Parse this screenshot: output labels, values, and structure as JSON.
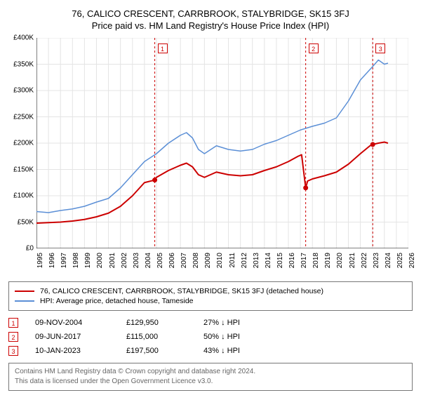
{
  "title_line1": "76, CALICO CRESCENT, CARRBROOK, STALYBRIDGE, SK15 3FJ",
  "title_line2": "Price paid vs. HM Land Registry's House Price Index (HPI)",
  "chart": {
    "type": "line",
    "background_color": "#ffffff",
    "grid_color": "#e4e4e4",
    "axis_color": "#000000",
    "label_fontsize": 10,
    "x_years": [
      1995,
      1996,
      1997,
      1998,
      1999,
      2000,
      2001,
      2002,
      2003,
      2004,
      2005,
      2006,
      2007,
      2008,
      2009,
      2010,
      2011,
      2012,
      2013,
      2014,
      2015,
      2016,
      2017,
      2018,
      2019,
      2020,
      2021,
      2022,
      2023,
      2024,
      2025,
      2026
    ],
    "x_min": 1995,
    "x_max": 2026,
    "y_min": 0,
    "y_max": 400000,
    "y_ticks": [
      0,
      50000,
      100000,
      150000,
      200000,
      250000,
      300000,
      350000,
      400000
    ],
    "y_tick_labels": [
      "£0",
      "£50K",
      "£100K",
      "£150K",
      "£200K",
      "£250K",
      "£300K",
      "£350K",
      "£400K"
    ],
    "series_property": {
      "color": "#cc0000",
      "width": 2,
      "points": [
        [
          1995,
          48000
        ],
        [
          1996,
          49000
        ],
        [
          1997,
          50000
        ],
        [
          1998,
          52000
        ],
        [
          1999,
          55000
        ],
        [
          2000,
          60000
        ],
        [
          2001,
          67000
        ],
        [
          2002,
          80000
        ],
        [
          2003,
          100000
        ],
        [
          2004,
          125000
        ],
        [
          2004.86,
          129950
        ],
        [
          2005,
          135000
        ],
        [
          2006,
          148000
        ],
        [
          2007,
          158000
        ],
        [
          2007.5,
          162000
        ],
        [
          2008,
          155000
        ],
        [
          2008.5,
          140000
        ],
        [
          2009,
          135000
        ],
        [
          2010,
          145000
        ],
        [
          2011,
          140000
        ],
        [
          2012,
          138000
        ],
        [
          2013,
          140000
        ],
        [
          2014,
          148000
        ],
        [
          2015,
          155000
        ],
        [
          2016,
          165000
        ],
        [
          2016.8,
          175000
        ],
        [
          2017.1,
          178000
        ],
        [
          2017.44,
          115000
        ],
        [
          2017.6,
          128000
        ],
        [
          2018,
          132000
        ],
        [
          2019,
          138000
        ],
        [
          2020,
          145000
        ],
        [
          2021,
          160000
        ],
        [
          2022,
          180000
        ],
        [
          2022.8,
          195000
        ],
        [
          2023.03,
          197500
        ],
        [
          2023.5,
          200000
        ],
        [
          2024,
          202000
        ],
        [
          2024.3,
          200000
        ]
      ],
      "sale_dots": [
        [
          2004.86,
          129950
        ],
        [
          2017.44,
          115000
        ],
        [
          2023.03,
          197500
        ]
      ]
    },
    "series_hpi": {
      "color": "#5b8fd6",
      "width": 1.5,
      "points": [
        [
          1995,
          70000
        ],
        [
          1996,
          68000
        ],
        [
          1997,
          72000
        ],
        [
          1998,
          75000
        ],
        [
          1999,
          80000
        ],
        [
          2000,
          88000
        ],
        [
          2001,
          95000
        ],
        [
          2002,
          115000
        ],
        [
          2003,
          140000
        ],
        [
          2004,
          165000
        ],
        [
          2005,
          180000
        ],
        [
          2006,
          200000
        ],
        [
          2007,
          215000
        ],
        [
          2007.5,
          220000
        ],
        [
          2008,
          210000
        ],
        [
          2008.5,
          188000
        ],
        [
          2009,
          180000
        ],
        [
          2010,
          195000
        ],
        [
          2011,
          188000
        ],
        [
          2012,
          185000
        ],
        [
          2013,
          188000
        ],
        [
          2014,
          198000
        ],
        [
          2015,
          205000
        ],
        [
          2016,
          215000
        ],
        [
          2017,
          225000
        ],
        [
          2018,
          232000
        ],
        [
          2019,
          238000
        ],
        [
          2020,
          248000
        ],
        [
          2021,
          280000
        ],
        [
          2022,
          320000
        ],
        [
          2023,
          345000
        ],
        [
          2023.5,
          358000
        ],
        [
          2024,
          350000
        ],
        [
          2024.3,
          352000
        ]
      ]
    },
    "event_lines": [
      {
        "x": 2004.86,
        "label": "1",
        "color": "#cc0000"
      },
      {
        "x": 2017.44,
        "label": "2",
        "color": "#cc0000"
      },
      {
        "x": 2023.03,
        "label": "3",
        "color": "#cc0000"
      }
    ]
  },
  "legend": {
    "border_color": "#777777",
    "items": [
      {
        "color": "#cc0000",
        "label": "76, CALICO CRESCENT, CARRBROOK, STALYBRIDGE, SK15 3FJ (detached house)"
      },
      {
        "color": "#5b8fd6",
        "label": "HPI: Average price, detached house, Tameside"
      }
    ]
  },
  "sales": [
    {
      "n": "1",
      "date": "09-NOV-2004",
      "price": "£129,950",
      "pct": "27% ↓ HPI",
      "color": "#cc0000"
    },
    {
      "n": "2",
      "date": "09-JUN-2017",
      "price": "£115,000",
      "pct": "50% ↓ HPI",
      "color": "#cc0000"
    },
    {
      "n": "3",
      "date": "10-JAN-2023",
      "price": "£197,500",
      "pct": "43% ↓ HPI",
      "color": "#cc0000"
    }
  ],
  "footer_line1": "Contains HM Land Registry data © Crown copyright and database right 2024.",
  "footer_line2": "This data is licensed under the Open Government Licence v3.0."
}
